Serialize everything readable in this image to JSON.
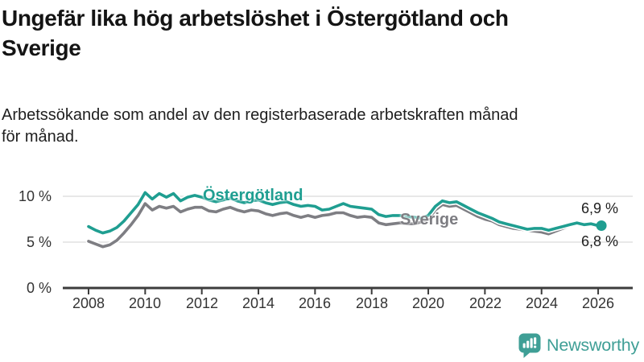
{
  "header": {
    "title": "Ungefär lika hög arbetslöshet i Östergötland och\nSverige",
    "subtitle": "Arbetssökande som andel av den registerbaserade arbetskraften månad\nför månad."
  },
  "chart_data": {
    "type": "line",
    "title": "Ungefär lika hög arbetslöshet i Östergötland och Sverige",
    "subtitle": "Arbetssökande som andel av den registerbaserade arbetskraften månad för månad.",
    "unit": "%",
    "xlabel": "",
    "ylabel": "",
    "grid": "horizontal",
    "legend": "inline-labels",
    "ylim": [
      0,
      11.8
    ],
    "xlim": [
      2007.1,
      2027.2
    ],
    "x_ticks": [
      2008,
      2010,
      2012,
      2014,
      2016,
      2018,
      2020,
      2022,
      2024,
      2026
    ],
    "y_ticks": [
      {
        "value": 0,
        "label": "0 %"
      },
      {
        "value": 5,
        "label": "5 %"
      },
      {
        "value": 10,
        "label": "10 %"
      }
    ],
    "x": [
      2008,
      2008.25,
      2008.5,
      2008.75,
      2009,
      2009.25,
      2009.5,
      2009.75,
      2010,
      2010.25,
      2010.5,
      2010.75,
      2011,
      2011.25,
      2011.5,
      2011.75,
      2012,
      2012.25,
      2012.5,
      2012.75,
      2013,
      2013.25,
      2013.5,
      2013.75,
      2014,
      2014.25,
      2014.5,
      2014.75,
      2015,
      2015.25,
      2015.5,
      2015.75,
      2016,
      2016.25,
      2016.5,
      2016.75,
      2017,
      2017.25,
      2017.5,
      2017.75,
      2018,
      2018.25,
      2018.5,
      2018.75,
      2019,
      2019.25,
      2019.5,
      2019.75,
      2020,
      2020.25,
      2020.5,
      2020.75,
      2021,
      2021.25,
      2021.5,
      2021.75,
      2022,
      2022.25,
      2022.5,
      2022.75,
      2023,
      2023.25,
      2023.5,
      2023.75,
      2024,
      2024.25,
      2024.5,
      2024.75,
      2025,
      2025.25,
      2025.5,
      2025.75,
      2026
    ],
    "series": [
      {
        "name": "Östergötland",
        "color": "#1f9e91",
        "end_label": "6,8 %",
        "end_value": 6.8,
        "values": [
          6.7,
          6.3,
          6.0,
          6.2,
          6.6,
          7.3,
          8.2,
          9.1,
          10.4,
          9.7,
          10.3,
          9.9,
          10.3,
          9.5,
          9.9,
          10.1,
          9.9,
          9.6,
          9.4,
          9.6,
          9.8,
          9.5,
          9.3,
          9.5,
          9.6,
          9.3,
          9.1,
          9.3,
          9.4,
          9.1,
          8.9,
          9.0,
          8.9,
          8.5,
          8.6,
          8.9,
          9.2,
          8.9,
          8.8,
          8.7,
          8.6,
          8.0,
          7.8,
          7.9,
          7.9,
          7.8,
          7.7,
          7.6,
          7.9,
          8.9,
          9.5,
          9.3,
          9.4,
          9.0,
          8.6,
          8.2,
          7.9,
          7.6,
          7.2,
          7.0,
          6.8,
          6.6,
          6.4,
          6.5,
          6.5,
          6.3,
          6.5,
          6.7,
          6.9,
          7.1,
          6.9,
          7.0,
          6.8
        ]
      },
      {
        "name": "Sverige",
        "color": "#7e7e83",
        "end_label": "6,9 %",
        "end_value": 6.9,
        "values": [
          5.1,
          4.8,
          4.5,
          4.7,
          5.2,
          6.0,
          6.9,
          7.9,
          9.2,
          8.5,
          8.9,
          8.7,
          8.9,
          8.3,
          8.6,
          8.8,
          8.8,
          8.4,
          8.3,
          8.6,
          8.8,
          8.5,
          8.3,
          8.5,
          8.4,
          8.1,
          7.9,
          8.1,
          8.2,
          7.9,
          7.7,
          7.9,
          7.7,
          7.9,
          8.0,
          8.2,
          8.2,
          7.9,
          7.7,
          7.8,
          7.7,
          7.1,
          6.9,
          7.0,
          7.1,
          7.0,
          7.0,
          7.2,
          7.5,
          8.5,
          9.1,
          8.9,
          9.0,
          8.6,
          8.2,
          7.8,
          7.5,
          7.3,
          6.9,
          6.7,
          6.5,
          6.4,
          6.3,
          6.2,
          6.1,
          5.9,
          6.2,
          6.5,
          6.8,
          7.0,
          6.9,
          6.9,
          6.9
        ]
      }
    ]
  },
  "colors": {
    "grid": "#dbdbdb",
    "axis": "#3c3c3c",
    "tick_text": "#333333"
  },
  "footer": {
    "brand": "Newsworthy",
    "brand_color": "#3f9f96",
    "logo_icon": "newsworthy-speech-bubble-bar-chart-icon"
  }
}
